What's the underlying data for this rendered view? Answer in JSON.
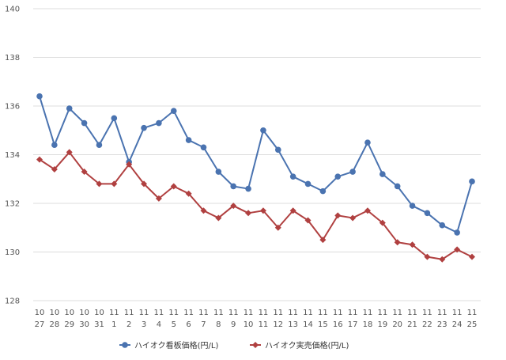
{
  "chart_data": {
    "type": "line",
    "categories": [
      [
        "10",
        "27"
      ],
      [
        "10",
        "28"
      ],
      [
        "10",
        "29"
      ],
      [
        "10",
        "30"
      ],
      [
        "10",
        "31"
      ],
      [
        "11",
        "1"
      ],
      [
        "11",
        "2"
      ],
      [
        "11",
        "3"
      ],
      [
        "11",
        "4"
      ],
      [
        "11",
        "5"
      ],
      [
        "11",
        "6"
      ],
      [
        "11",
        "7"
      ],
      [
        "11",
        "8"
      ],
      [
        "11",
        "9"
      ],
      [
        "11",
        "10"
      ],
      [
        "11",
        "11"
      ],
      [
        "11",
        "12"
      ],
      [
        "11",
        "13"
      ],
      [
        "11",
        "14"
      ],
      [
        "11",
        "15"
      ],
      [
        "11",
        "16"
      ],
      [
        "11",
        "17"
      ],
      [
        "11",
        "18"
      ],
      [
        "11",
        "19"
      ],
      [
        "11",
        "20"
      ],
      [
        "11",
        "21"
      ],
      [
        "11",
        "22"
      ],
      [
        "11",
        "23"
      ],
      [
        "11",
        "24"
      ],
      [
        "11",
        "25"
      ]
    ],
    "ylim": [
      128,
      140
    ],
    "yticks": [
      "128",
      "130",
      "132",
      "134",
      "136",
      "138",
      "140"
    ],
    "grid": true,
    "legend_position": "bottom",
    "series": [
      {
        "name": "ハイオク看板価格(円/L)",
        "color": "#4a73b0",
        "marker": "circle",
        "values": [
          136.4,
          134.4,
          135.9,
          135.3,
          134.4,
          135.5,
          133.7,
          135.1,
          135.3,
          135.8,
          134.6,
          134.3,
          133.3,
          132.7,
          132.6,
          135.0,
          134.2,
          133.1,
          132.8,
          132.5,
          133.1,
          133.3,
          134.5,
          133.2,
          132.7,
          131.9,
          131.6,
          131.1,
          130.8,
          132.9
        ]
      },
      {
        "name": "ハイオク実売価格(円/L)",
        "color": "#b04040",
        "marker": "diamond",
        "values": [
          133.8,
          133.4,
          134.1,
          133.3,
          132.8,
          132.8,
          133.6,
          132.8,
          132.2,
          132.7,
          132.4,
          131.7,
          131.4,
          131.9,
          131.6,
          131.7,
          131.0,
          131.7,
          131.3,
          130.5,
          131.5,
          131.4,
          131.7,
          131.2,
          130.4,
          130.3,
          129.8,
          129.7,
          130.1,
          129.8
        ]
      }
    ]
  }
}
